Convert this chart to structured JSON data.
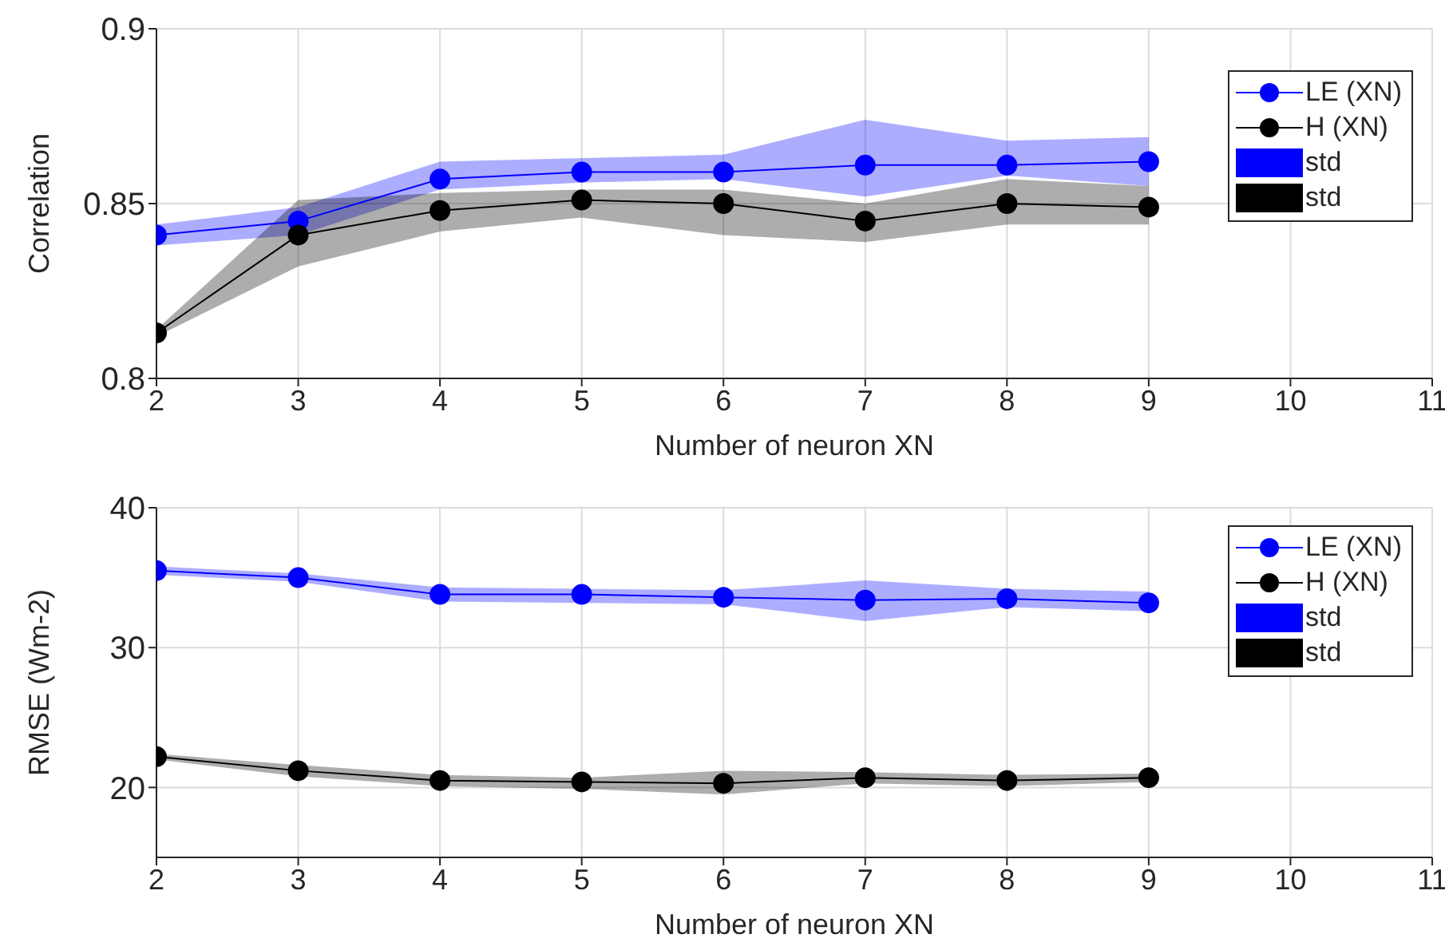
{
  "chart_data": [
    {
      "type": "line",
      "xlabel": "Number of neuron XN",
      "ylabel": "Correlation",
      "x": [
        2,
        3,
        4,
        5,
        6,
        7,
        8,
        9
      ],
      "xlim": [
        2,
        11
      ],
      "xticks": [
        2,
        3,
        4,
        5,
        6,
        7,
        8,
        9,
        10,
        11
      ],
      "ylim": [
        0.8,
        0.9
      ],
      "yticks": [
        0.8,
        0.85,
        0.9
      ],
      "grid": true,
      "legend": "top right",
      "marker": "circle",
      "line_style": "solid",
      "annotations": [
        "std",
        "std"
      ],
      "series": [
        {
          "name": "LE (XN)",
          "color": "#0000ff",
          "values": [
            0.841,
            0.845,
            0.857,
            0.859,
            0.859,
            0.861,
            0.861,
            0.862
          ],
          "lower": [
            0.838,
            0.841,
            0.854,
            0.856,
            0.857,
            0.852,
            0.858,
            0.855
          ],
          "upper": [
            0.844,
            0.849,
            0.862,
            0.863,
            0.864,
            0.874,
            0.868,
            0.869
          ]
        },
        {
          "name": "H (XN)",
          "color": "#000000",
          "values": [
            0.813,
            0.841,
            0.848,
            0.851,
            0.85,
            0.845,
            0.85,
            0.849
          ],
          "lower": [
            0.812,
            0.832,
            0.842,
            0.846,
            0.841,
            0.839,
            0.844,
            0.844
          ],
          "upper": [
            0.814,
            0.851,
            0.853,
            0.854,
            0.854,
            0.85,
            0.857,
            0.855
          ]
        }
      ]
    },
    {
      "type": "line",
      "xlabel": "Number of neuron XN",
      "ylabel": "RMSE (Wm-2)",
      "x": [
        2,
        3,
        4,
        5,
        6,
        7,
        8,
        9
      ],
      "xlim": [
        2,
        11
      ],
      "xticks": [
        2,
        3,
        4,
        5,
        6,
        7,
        8,
        9,
        10,
        11
      ],
      "ylim": [
        15,
        40
      ],
      "yticks": [
        20,
        30,
        40
      ],
      "grid": true,
      "legend": "top right",
      "marker": "circle",
      "line_style": "solid",
      "annotations": [
        "std",
        "std"
      ],
      "series": [
        {
          "name": "LE (XN)",
          "color": "#0000ff",
          "values": [
            35.5,
            35,
            33.8,
            33.8,
            33.6,
            33.4,
            33.5,
            33.2
          ],
          "lower": [
            35.2,
            34.7,
            33.3,
            33.2,
            33.1,
            31.9,
            32.9,
            32.6
          ],
          "upper": [
            35.8,
            35.3,
            34.3,
            34.2,
            34.1,
            34.8,
            34.2,
            34
          ]
        },
        {
          "name": "H (XN)",
          "color": "#000000",
          "values": [
            22.2,
            21.2,
            20.5,
            20.4,
            20.3,
            20.7,
            20.5,
            20.7
          ],
          "lower": [
            22,
            20.8,
            20.1,
            19.9,
            19.5,
            20.3,
            20.1,
            20.4
          ],
          "upper": [
            22.4,
            21.6,
            20.9,
            20.7,
            21.2,
            21.1,
            20.9,
            21
          ]
        }
      ]
    }
  ]
}
